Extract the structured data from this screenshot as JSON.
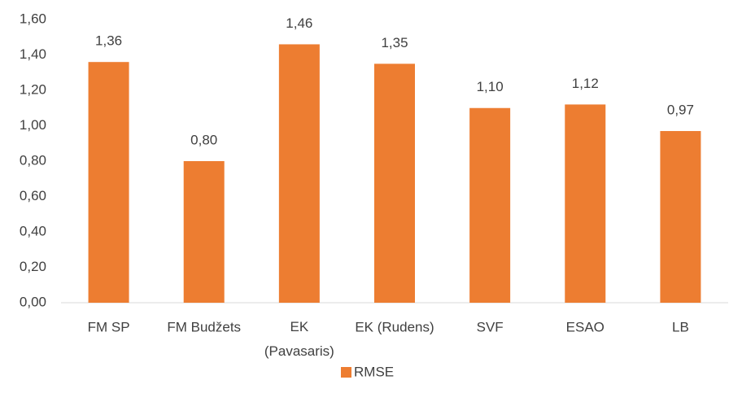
{
  "chart_data": {
    "type": "bar",
    "categories": [
      "FM SP",
      "FM Budžets",
      "EK (Pavasaris)",
      "EK (Rudens)",
      "SVF",
      "ESAO",
      "LB"
    ],
    "series": [
      {
        "name": "RMSE",
        "color": "#ed7d31",
        "values": [
          1.36,
          0.8,
          1.46,
          1.35,
          1.1,
          1.12,
          0.97
        ],
        "value_labels": [
          "1,36",
          "0,80",
          "1,46",
          "1,35",
          "1,10",
          "1,12",
          "0,97"
        ]
      }
    ],
    "ylim": [
      0,
      1.6
    ],
    "yticks": [
      {
        "value": 0,
        "label": "0,00"
      },
      {
        "value": 0.2,
        "label": "0,20"
      },
      {
        "value": 0.4,
        "label": "0,40"
      },
      {
        "value": 0.6,
        "label": "0,60"
      },
      {
        "value": 0.8,
        "label": "0,80"
      },
      {
        "value": 1.0,
        "label": "1,00"
      },
      {
        "value": 1.2,
        "label": "1,20"
      },
      {
        "value": 1.4,
        "label": "1,40"
      },
      {
        "value": 1.6,
        "label": "1,60"
      }
    ],
    "grid": false,
    "legend": "bottom"
  }
}
